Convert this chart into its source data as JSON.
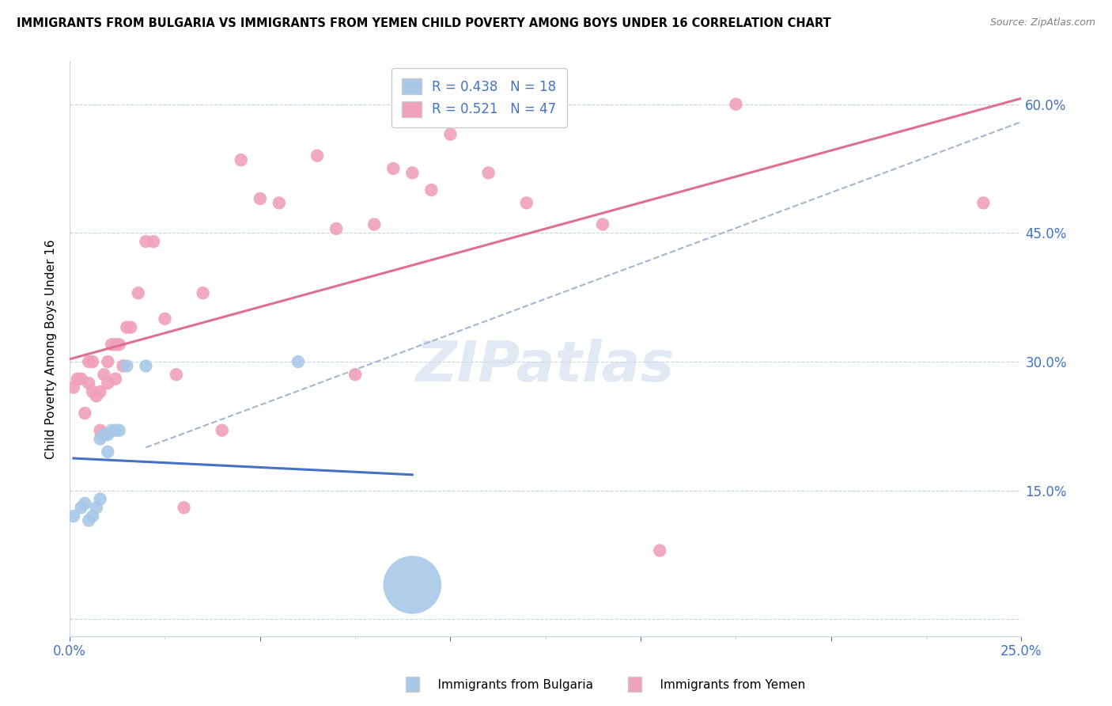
{
  "title": "IMMIGRANTS FROM BULGARIA VS IMMIGRANTS FROM YEMEN CHILD POVERTY AMONG BOYS UNDER 16 CORRELATION CHART",
  "source": "Source: ZipAtlas.com",
  "ylabel": "Child Poverty Among Boys Under 16",
  "watermark": "ZIPatlas",
  "xlim": [
    0.0,
    0.25
  ],
  "ylim": [
    -0.02,
    0.65
  ],
  "x_ticks": [
    0.0,
    0.05,
    0.1,
    0.15,
    0.2,
    0.25
  ],
  "x_tick_labels": [
    "0.0%",
    "",
    "",
    "",
    "",
    "25.0%"
  ],
  "y_ticks": [
    0.0,
    0.15,
    0.3,
    0.45,
    0.6
  ],
  "y_tick_labels": [
    "",
    "15.0%",
    "30.0%",
    "45.0%",
    "60.0%"
  ],
  "bulgaria_color": "#a8c8e8",
  "yemen_color": "#f0a0b8",
  "bulgaria_line_color": "#4472c4",
  "yemen_line_color": "#e07090",
  "dashed_line_color": "#a0b8d0",
  "legend_R_bulgaria": "0.438",
  "legend_N_bulgaria": "18",
  "legend_R_yemen": "0.521",
  "legend_N_yemen": "47",
  "bulgaria_scatter_x": [
    0.001,
    0.003,
    0.004,
    0.005,
    0.006,
    0.007,
    0.008,
    0.008,
    0.009,
    0.01,
    0.01,
    0.011,
    0.012,
    0.013,
    0.015,
    0.02,
    0.06,
    0.09
  ],
  "bulgaria_scatter_y": [
    0.12,
    0.13,
    0.135,
    0.115,
    0.12,
    0.13,
    0.14,
    0.21,
    0.215,
    0.195,
    0.215,
    0.22,
    0.22,
    0.22,
    0.295,
    0.295,
    0.3,
    0.04
  ],
  "bulgaria_scatter_size": [
    20,
    20,
    20,
    20,
    20,
    20,
    20,
    20,
    20,
    20,
    20,
    20,
    20,
    20,
    20,
    20,
    20,
    400
  ],
  "yemen_scatter_x": [
    0.001,
    0.002,
    0.003,
    0.004,
    0.005,
    0.005,
    0.006,
    0.006,
    0.007,
    0.008,
    0.008,
    0.009,
    0.009,
    0.01,
    0.01,
    0.011,
    0.012,
    0.012,
    0.013,
    0.014,
    0.015,
    0.016,
    0.018,
    0.02,
    0.022,
    0.025,
    0.028,
    0.03,
    0.035,
    0.04,
    0.045,
    0.05,
    0.055,
    0.065,
    0.07,
    0.075,
    0.08,
    0.085,
    0.09,
    0.095,
    0.1,
    0.11,
    0.12,
    0.14,
    0.155,
    0.175,
    0.24
  ],
  "yemen_scatter_y": [
    0.27,
    0.28,
    0.28,
    0.24,
    0.275,
    0.3,
    0.3,
    0.265,
    0.26,
    0.265,
    0.22,
    0.215,
    0.285,
    0.275,
    0.3,
    0.32,
    0.32,
    0.28,
    0.32,
    0.295,
    0.34,
    0.34,
    0.38,
    0.44,
    0.44,
    0.35,
    0.285,
    0.13,
    0.38,
    0.22,
    0.535,
    0.49,
    0.485,
    0.54,
    0.455,
    0.285,
    0.46,
    0.525,
    0.52,
    0.5,
    0.565,
    0.52,
    0.485,
    0.46,
    0.08,
    0.6,
    0.485
  ],
  "yemen_scatter_size": [
    20,
    20,
    20,
    20,
    20,
    20,
    20,
    20,
    20,
    20,
    20,
    20,
    20,
    20,
    20,
    20,
    20,
    20,
    20,
    20,
    20,
    20,
    20,
    20,
    20,
    20,
    20,
    20,
    20,
    20,
    20,
    20,
    20,
    20,
    20,
    20,
    20,
    20,
    20,
    20,
    20,
    20,
    20,
    20,
    20,
    20,
    20
  ],
  "bg_color": "#ffffff",
  "grid_color": "#c8d4e0",
  "text_color": "#4472c4",
  "legend_bottom_bulgaria": "Immigrants from Bulgaria",
  "legend_bottom_yemen": "Immigrants from Yemen"
}
